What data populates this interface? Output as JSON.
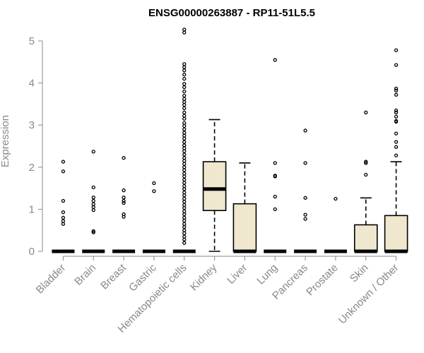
{
  "chart_data": {
    "type": "box",
    "title": "ENSG00000263887 - RP11-51L5.5",
    "ylabel": "Expression",
    "xlabel": "",
    "ylim": [
      0,
      5.3
    ],
    "yticks": [
      0,
      1,
      2,
      3,
      4,
      5
    ],
    "grid": false,
    "colors": {
      "box_fill": "#efe8cf",
      "stroke": "#000000",
      "axis_text": "#888888"
    },
    "categories": [
      "Bladder",
      "Brain",
      "Breast",
      "Gastric",
      "Hematopoietic cells",
      "Kidney",
      "Liver",
      "Lung",
      "Pancreas",
      "Prostate",
      "Skin",
      "Unknown / Other"
    ],
    "boxes": [
      {
        "category": "Bladder",
        "q1": 0,
        "median": 0,
        "q3": 0,
        "whisker_low": 0,
        "whisker_high": 0,
        "outliers": [
          2.13,
          1.9,
          1.2,
          0.93,
          0.8,
          0.72,
          0.65
        ]
      },
      {
        "category": "Brain",
        "q1": 0,
        "median": 0,
        "q3": 0,
        "whisker_low": 0,
        "whisker_high": 0,
        "outliers": [
          2.37,
          1.52,
          1.28,
          1.2,
          1.12,
          1.05,
          0.98,
          0.48,
          0.45
        ]
      },
      {
        "category": "Breast",
        "q1": 0,
        "median": 0,
        "q3": 0,
        "whisker_low": 0,
        "whisker_high": 0,
        "outliers": [
          2.22,
          1.45,
          1.28,
          1.2,
          1.15,
          0.88,
          0.82
        ]
      },
      {
        "category": "Gastric",
        "q1": 0,
        "median": 0,
        "q3": 0,
        "whisker_low": 0,
        "whisker_high": 0,
        "outliers": [
          1.62,
          1.43
        ]
      },
      {
        "category": "Hematopoietic cells",
        "q1": 0,
        "median": 0,
        "q3": 0,
        "whisker_low": 0,
        "whisker_high": 0,
        "outliers": [
          5.27,
          5.2,
          4.45,
          4.38,
          4.3,
          4.2,
          4.1,
          3.98,
          3.9,
          3.8,
          3.7,
          3.62,
          3.55,
          3.48,
          3.4,
          3.3,
          3.22,
          3.15,
          3.05,
          2.98,
          2.9,
          2.82,
          2.75,
          2.68,
          2.6,
          2.52,
          2.45,
          2.38,
          2.3,
          2.22,
          2.15,
          2.08,
          2.0,
          1.93,
          1.85,
          1.78,
          1.7,
          1.63,
          1.55,
          1.48,
          1.4,
          1.33,
          1.25,
          1.18,
          1.1,
          1.03,
          0.95,
          0.88,
          0.8,
          0.73,
          0.65,
          0.58,
          0.5,
          0.43,
          0.35,
          0.28,
          0.2
        ]
      },
      {
        "category": "Kidney",
        "q1": 0.97,
        "median": 1.48,
        "q3": 2.13,
        "whisker_low": 0,
        "whisker_high": 3.13,
        "outliers": []
      },
      {
        "category": "Liver",
        "q1": 0,
        "median": 0,
        "q3": 1.13,
        "whisker_low": 0,
        "whisker_high": 2.1,
        "outliers": []
      },
      {
        "category": "Lung",
        "q1": 0,
        "median": 0,
        "q3": 0,
        "whisker_low": 0,
        "whisker_high": 0,
        "outliers": [
          4.55,
          2.1,
          1.8,
          1.78,
          1.3,
          1.0
        ]
      },
      {
        "category": "Pancreas",
        "q1": 0,
        "median": 0,
        "q3": 0,
        "whisker_low": 0,
        "whisker_high": 0,
        "outliers": [
          2.87,
          2.1,
          1.27,
          0.87,
          0.77
        ]
      },
      {
        "category": "Prostate",
        "q1": 0,
        "median": 0,
        "q3": 0,
        "whisker_low": 0,
        "whisker_high": 0,
        "outliers": [
          1.25
        ]
      },
      {
        "category": "Skin",
        "q1": 0,
        "median": 0,
        "q3": 0.63,
        "whisker_low": 0,
        "whisker_high": 1.27,
        "outliers": [
          3.3,
          2.13,
          2.1,
          1.82
        ]
      },
      {
        "category": "Unknown / Other",
        "q1": 0,
        "median": 0,
        "q3": 0.85,
        "whisker_low": 0,
        "whisker_high": 2.13,
        "outliers": [
          4.78,
          4.43,
          3.87,
          3.82,
          3.72,
          3.35,
          3.3,
          3.2,
          3.1,
          3.08,
          2.8,
          2.6,
          2.48,
          2.28
        ]
      }
    ]
  }
}
